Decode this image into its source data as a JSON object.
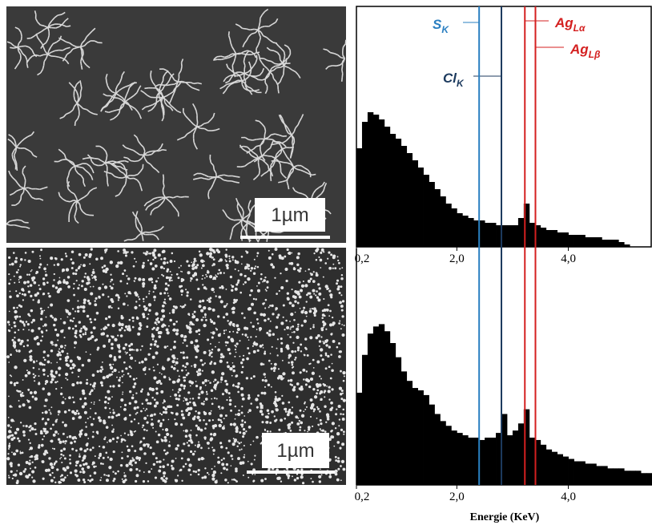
{
  "images": [
    {
      "scale_label": "1µm"
    },
    {
      "scale_label": "1µm"
    }
  ],
  "chart_data": [
    {
      "type": "bar",
      "color": "#000000",
      "x": [
        0.2,
        0.3,
        0.4,
        0.5,
        0.6,
        0.7,
        0.8,
        0.9,
        1.0,
        1.1,
        1.2,
        1.3,
        1.4,
        1.5,
        1.6,
        1.7,
        1.8,
        1.9,
        2.0,
        2.1,
        2.2,
        2.3,
        2.4,
        2.5,
        2.6,
        2.7,
        2.8,
        2.9,
        3.0,
        3.1,
        3.2,
        3.3,
        3.4,
        3.5,
        3.6,
        3.7,
        3.8,
        3.9,
        4.0,
        4.1,
        4.2,
        4.3,
        4.4,
        4.5,
        4.6,
        4.7,
        4.8,
        4.9,
        5.0,
        5.1,
        5.2,
        5.3,
        5.4
      ],
      "values": [
        41,
        52,
        56,
        55,
        53,
        50,
        47,
        45,
        42,
        39,
        36,
        33,
        30,
        27,
        24,
        21,
        18,
        16,
        14,
        13,
        12,
        11,
        11,
        10,
        10,
        9,
        9,
        9,
        9,
        12,
        18,
        10,
        9,
        8,
        7,
        7,
        6,
        6,
        5,
        5,
        5,
        4,
        4,
        4,
        3,
        3,
        3,
        2,
        1,
        0,
        0,
        0,
        0
      ],
      "xlim": [
        0.2,
        5.5
      ],
      "ylim": [
        0,
        100
      ],
      "xticks": [
        {
          "value": 0.2,
          "label": "0,2"
        },
        {
          "value": 2.0,
          "label": "2,0"
        },
        {
          "value": 4.0,
          "label": "4,0"
        }
      ],
      "markers": [
        {
          "label": "S",
          "sub": "K",
          "x": 2.4,
          "color": "#2a7fc1"
        },
        {
          "label": "Cl",
          "sub": "K",
          "x": 2.8,
          "color": "#1c3a5e"
        },
        {
          "label": "Ag",
          "sub": "Lα",
          "x": 3.22,
          "color": "#d42020"
        },
        {
          "label": "Ag",
          "sub": "Lβ",
          "x": 3.41,
          "color": "#d42020"
        }
      ]
    },
    {
      "type": "bar",
      "color": "#000000",
      "x": [
        0.2,
        0.3,
        0.4,
        0.5,
        0.6,
        0.7,
        0.8,
        0.9,
        1.0,
        1.1,
        1.2,
        1.3,
        1.4,
        1.5,
        1.6,
        1.7,
        1.8,
        1.9,
        2.0,
        2.1,
        2.2,
        2.3,
        2.4,
        2.5,
        2.6,
        2.7,
        2.8,
        2.9,
        3.0,
        3.1,
        3.2,
        3.3,
        3.4,
        3.5,
        3.6,
        3.7,
        3.8,
        3.9,
        4.0,
        4.1,
        4.2,
        4.3,
        4.4,
        4.5,
        4.6,
        4.7,
        4.8,
        4.9,
        5.0,
        5.1,
        5.2,
        5.3,
        5.4
      ],
      "values": [
        39,
        55,
        64,
        67,
        68,
        65,
        60,
        54,
        48,
        44,
        41,
        40,
        38,
        34,
        30,
        27,
        25,
        23,
        22,
        21,
        20,
        20,
        19,
        20,
        20,
        22,
        30,
        21,
        23,
        26,
        32,
        20,
        19,
        17,
        15,
        14,
        13,
        12,
        11,
        10,
        10,
        9,
        9,
        8,
        8,
        7,
        7,
        7,
        6,
        6,
        6,
        5,
        5
      ],
      "xlim": [
        0.2,
        5.5
      ],
      "ylim": [
        0,
        100
      ],
      "xticks": [
        {
          "value": 0.2,
          "label": "0,2"
        },
        {
          "value": 2.0,
          "label": "2,0"
        },
        {
          "value": 4.0,
          "label": "4,0"
        }
      ],
      "xlabel": "Energie (KeV)"
    }
  ]
}
